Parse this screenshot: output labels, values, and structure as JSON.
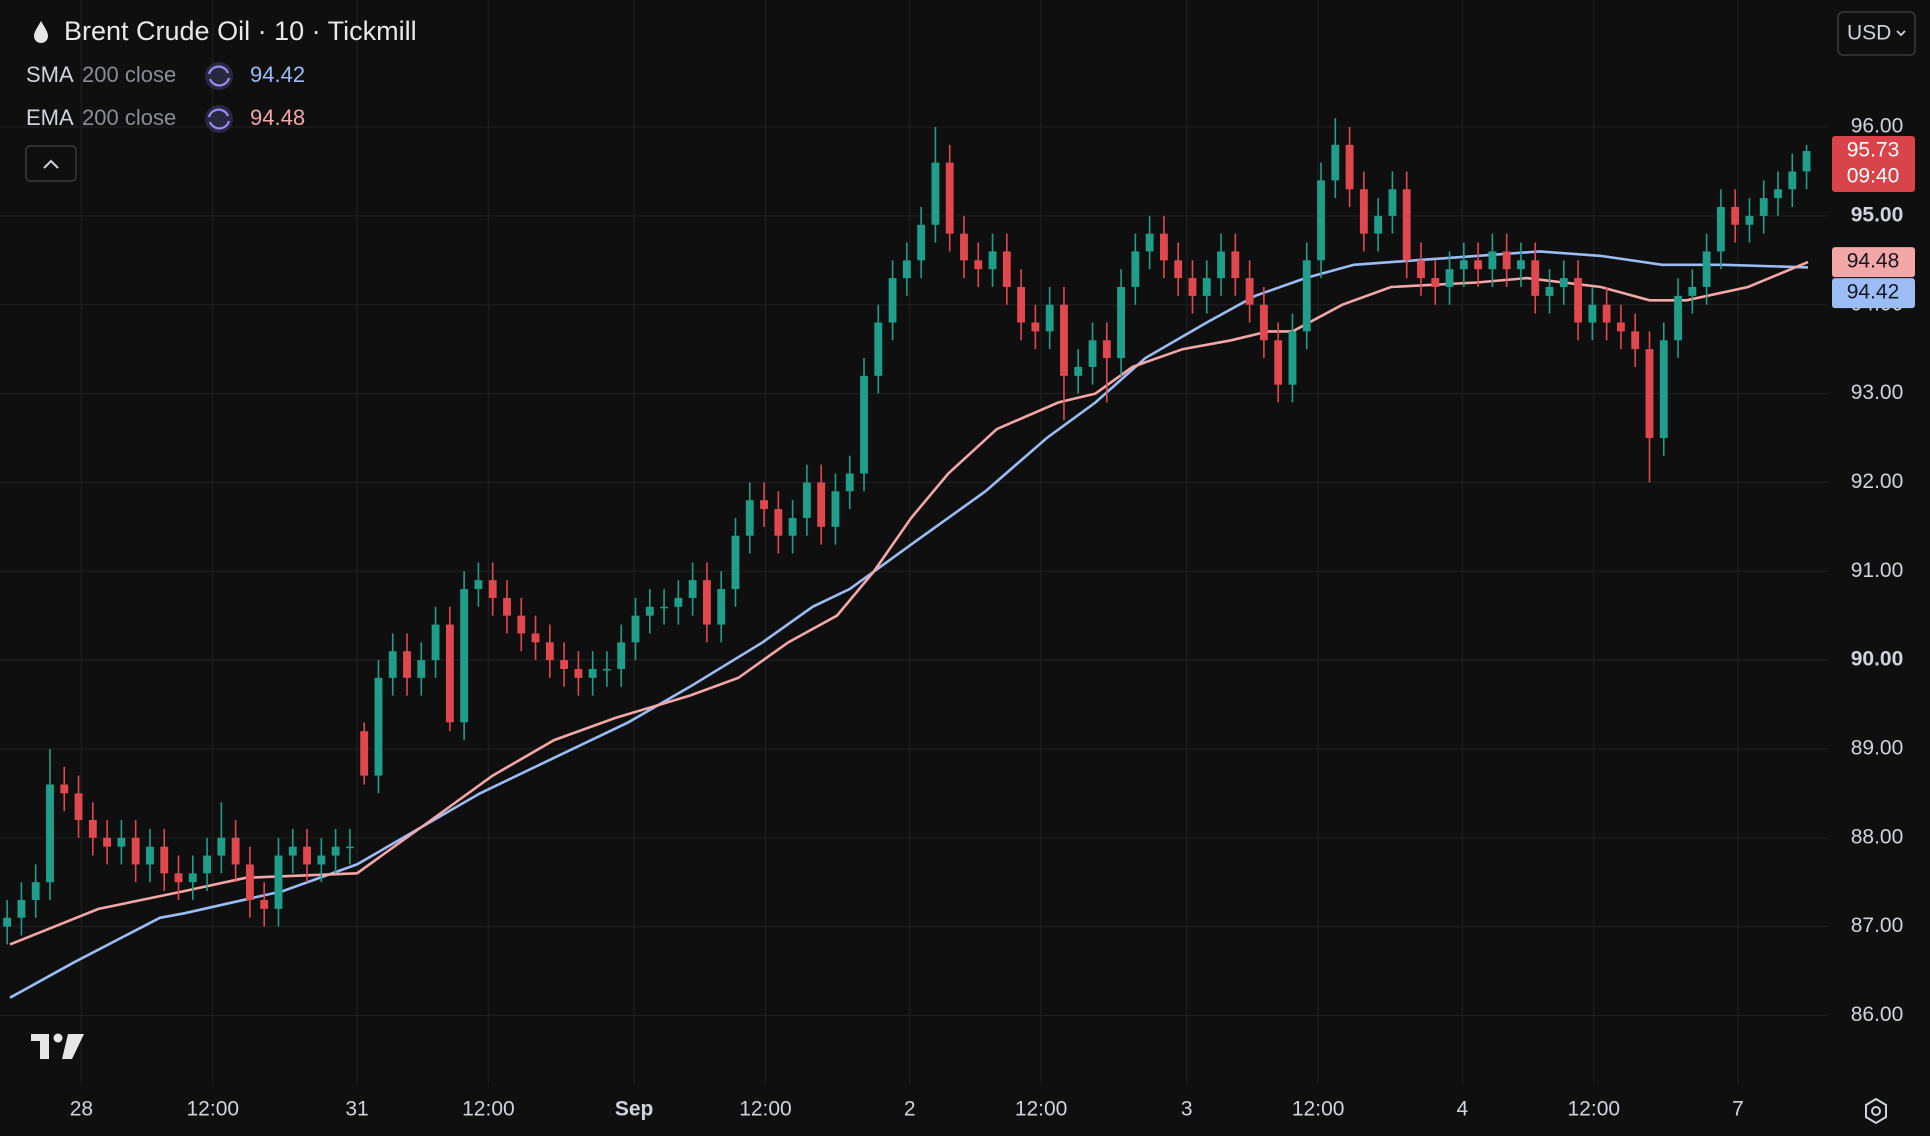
{
  "chart_data": {
    "type": "candlestick",
    "title": "Brent Crude Oil · 10 · Tickmill",
    "currency": "USD",
    "countdown": "09:40",
    "up_color": "#1f9e89",
    "down_color": "#e0484f",
    "grid": true,
    "xlim": [
      0,
      128
    ],
    "ylim": [
      85.24,
      97.43
    ],
    "xticks": [
      {
        "value": 5.7,
        "label": "28"
      },
      {
        "value": 14.9,
        "label": "12:00"
      },
      {
        "value": 25,
        "label": "31"
      },
      {
        "value": 34.2,
        "label": "12:00"
      },
      {
        "value": 44.4,
        "label": "Sep",
        "bold": true
      },
      {
        "value": 53.6,
        "label": "12:00"
      },
      {
        "value": 63.7,
        "label": "2"
      },
      {
        "value": 72.9,
        "label": "12:00"
      },
      {
        "value": 83.1,
        "label": "3"
      },
      {
        "value": 92.3,
        "label": "12:00"
      },
      {
        "value": 102.4,
        "label": "4"
      },
      {
        "value": 111.6,
        "label": "12:00"
      },
      {
        "value": 121.7,
        "label": "7"
      }
    ],
    "yticks": [
      {
        "value": 86,
        "label": "86.00"
      },
      {
        "value": 87,
        "label": "87.00"
      },
      {
        "value": 88,
        "label": "88.00"
      },
      {
        "value": 89,
        "label": "89.00"
      },
      {
        "value": 90,
        "label": "90.00",
        "bold": true
      },
      {
        "value": 91,
        "label": "91.00"
      },
      {
        "value": 92,
        "label": "92.00"
      },
      {
        "value": 93,
        "label": "93.00"
      },
      {
        "value": 94,
        "label": "94.00"
      },
      {
        "value": 95,
        "label": "95.00",
        "bold": true
      },
      {
        "value": 96,
        "label": "96.00"
      }
    ],
    "candles": [
      [
        87.0,
        87.3,
        86.8,
        87.1
      ],
      [
        87.1,
        87.5,
        86.9,
        87.3
      ],
      [
        87.3,
        87.7,
        87.1,
        87.5
      ],
      [
        87.5,
        89.0,
        87.3,
        88.6
      ],
      [
        88.6,
        88.8,
        88.3,
        88.5
      ],
      [
        88.5,
        88.7,
        88.0,
        88.2
      ],
      [
        88.2,
        88.4,
        87.8,
        88.0
      ],
      [
        88.0,
        88.2,
        87.7,
        87.9
      ],
      [
        87.9,
        88.2,
        87.7,
        88.0
      ],
      [
        88.0,
        88.2,
        87.5,
        87.7
      ],
      [
        87.7,
        88.1,
        87.5,
        87.9
      ],
      [
        87.9,
        88.1,
        87.4,
        87.6
      ],
      [
        87.6,
        87.8,
        87.3,
        87.5
      ],
      [
        87.5,
        87.8,
        87.3,
        87.6
      ],
      [
        87.6,
        88.0,
        87.4,
        87.8
      ],
      [
        87.8,
        88.4,
        87.6,
        88.0
      ],
      [
        88.0,
        88.2,
        87.5,
        87.7
      ],
      [
        87.7,
        87.9,
        87.1,
        87.3
      ],
      [
        87.3,
        87.5,
        87.0,
        87.2
      ],
      [
        87.2,
        88.0,
        87.0,
        87.8
      ],
      [
        87.8,
        88.1,
        87.6,
        87.9
      ],
      [
        87.9,
        88.1,
        87.5,
        87.7
      ],
      [
        87.7,
        88.0,
        87.5,
        87.8
      ],
      [
        87.8,
        88.1,
        87.6,
        87.9
      ],
      [
        87.9,
        88.1,
        87.7,
        87.9
      ],
      [
        89.2,
        89.3,
        88.6,
        88.7
      ],
      [
        88.7,
        90.0,
        88.5,
        89.8
      ],
      [
        89.8,
        90.3,
        89.6,
        90.1
      ],
      [
        90.1,
        90.3,
        89.6,
        89.8
      ],
      [
        89.8,
        90.2,
        89.6,
        90.0
      ],
      [
        90.0,
        90.6,
        89.8,
        90.4
      ],
      [
        90.4,
        90.6,
        89.2,
        89.3
      ],
      [
        89.3,
        91.0,
        89.1,
        90.8
      ],
      [
        90.8,
        91.1,
        90.6,
        90.9
      ],
      [
        90.9,
        91.1,
        90.5,
        90.7
      ],
      [
        90.7,
        90.9,
        90.3,
        90.5
      ],
      [
        90.5,
        90.7,
        90.1,
        90.3
      ],
      [
        90.3,
        90.5,
        90.0,
        90.2
      ],
      [
        90.2,
        90.4,
        89.8,
        90.0
      ],
      [
        90.0,
        90.2,
        89.7,
        89.9
      ],
      [
        89.9,
        90.1,
        89.6,
        89.8
      ],
      [
        89.8,
        90.1,
        89.6,
        89.9
      ],
      [
        89.9,
        90.1,
        89.7,
        89.9
      ],
      [
        89.9,
        90.4,
        89.7,
        90.2
      ],
      [
        90.2,
        90.7,
        90.0,
        90.5
      ],
      [
        90.5,
        90.8,
        90.3,
        90.6
      ],
      [
        90.6,
        90.8,
        90.4,
        90.6
      ],
      [
        90.6,
        90.9,
        90.4,
        90.7
      ],
      [
        90.7,
        91.1,
        90.5,
        90.9
      ],
      [
        90.9,
        91.1,
        90.2,
        90.4
      ],
      [
        90.4,
        91.0,
        90.2,
        90.8
      ],
      [
        90.8,
        91.6,
        90.6,
        91.4
      ],
      [
        91.4,
        92.0,
        91.2,
        91.8
      ],
      [
        91.8,
        92.0,
        91.5,
        91.7
      ],
      [
        91.7,
        91.9,
        91.2,
        91.4
      ],
      [
        91.4,
        91.8,
        91.2,
        91.6
      ],
      [
        91.6,
        92.2,
        91.4,
        92.0
      ],
      [
        92.0,
        92.2,
        91.3,
        91.5
      ],
      [
        91.5,
        92.1,
        91.3,
        91.9
      ],
      [
        91.9,
        92.3,
        91.7,
        92.1
      ],
      [
        92.1,
        93.4,
        91.9,
        93.2
      ],
      [
        93.2,
        94.0,
        93.0,
        93.8
      ],
      [
        93.8,
        94.5,
        93.6,
        94.3
      ],
      [
        94.3,
        94.7,
        94.1,
        94.5
      ],
      [
        94.5,
        95.1,
        94.3,
        94.9
      ],
      [
        94.9,
        96.0,
        94.7,
        95.6
      ],
      [
        95.6,
        95.8,
        94.6,
        94.8
      ],
      [
        94.8,
        95.0,
        94.3,
        94.5
      ],
      [
        94.5,
        94.7,
        94.2,
        94.4
      ],
      [
        94.4,
        94.8,
        94.2,
        94.6
      ],
      [
        94.6,
        94.8,
        94.0,
        94.2
      ],
      [
        94.2,
        94.4,
        93.6,
        93.8
      ],
      [
        93.8,
        94.0,
        93.5,
        93.7
      ],
      [
        93.7,
        94.2,
        93.5,
        94.0
      ],
      [
        94.0,
        94.2,
        92.7,
        93.2
      ],
      [
        93.2,
        93.5,
        93.0,
        93.3
      ],
      [
        93.3,
        93.8,
        93.1,
        93.6
      ],
      [
        93.6,
        93.8,
        92.9,
        93.4
      ],
      [
        93.4,
        94.4,
        93.2,
        94.2
      ],
      [
        94.2,
        94.8,
        94.0,
        94.6
      ],
      [
        94.6,
        95.0,
        94.4,
        94.8
      ],
      [
        94.8,
        95.0,
        94.3,
        94.5
      ],
      [
        94.5,
        94.7,
        94.1,
        94.3
      ],
      [
        94.3,
        94.5,
        93.9,
        94.1
      ],
      [
        94.1,
        94.5,
        93.9,
        94.3
      ],
      [
        94.3,
        94.8,
        94.1,
        94.6
      ],
      [
        94.6,
        94.8,
        94.1,
        94.3
      ],
      [
        94.3,
        94.5,
        93.8,
        94.0
      ],
      [
        94.0,
        94.2,
        93.4,
        93.6
      ],
      [
        93.6,
        93.8,
        92.9,
        93.1
      ],
      [
        93.1,
        93.9,
        92.9,
        93.7
      ],
      [
        93.7,
        94.7,
        93.5,
        94.5
      ],
      [
        94.5,
        95.6,
        94.3,
        95.4
      ],
      [
        95.4,
        96.1,
        95.2,
        95.8
      ],
      [
        95.8,
        96.0,
        95.1,
        95.3
      ],
      [
        95.3,
        95.5,
        94.6,
        94.8
      ],
      [
        94.8,
        95.2,
        94.6,
        95.0
      ],
      [
        95.0,
        95.5,
        94.8,
        95.3
      ],
      [
        95.3,
        95.5,
        94.3,
        94.5
      ],
      [
        94.5,
        94.7,
        94.1,
        94.3
      ],
      [
        94.3,
        94.5,
        94.0,
        94.2
      ],
      [
        94.2,
        94.6,
        94.0,
        94.4
      ],
      [
        94.4,
        94.7,
        94.2,
        94.5
      ],
      [
        94.5,
        94.7,
        94.2,
        94.4
      ],
      [
        94.4,
        94.8,
        94.2,
        94.6
      ],
      [
        94.6,
        94.8,
        94.2,
        94.4
      ],
      [
        94.4,
        94.7,
        94.2,
        94.5
      ],
      [
        94.5,
        94.7,
        93.9,
        94.1
      ],
      [
        94.1,
        94.4,
        93.9,
        94.2
      ],
      [
        94.2,
        94.5,
        94.0,
        94.3
      ],
      [
        94.3,
        94.5,
        93.6,
        93.8
      ],
      [
        93.8,
        94.2,
        93.6,
        94.0
      ],
      [
        94.0,
        94.2,
        93.6,
        93.8
      ],
      [
        93.8,
        94.0,
        93.5,
        93.7
      ],
      [
        93.7,
        93.9,
        93.3,
        93.5
      ],
      [
        93.5,
        93.7,
        92.0,
        92.5
      ],
      [
        92.5,
        93.8,
        92.3,
        93.6
      ],
      [
        93.6,
        94.3,
        93.4,
        94.1
      ],
      [
        94.1,
        94.4,
        93.9,
        94.2
      ],
      [
        94.2,
        94.8,
        94.0,
        94.6
      ],
      [
        94.6,
        95.3,
        94.4,
        95.1
      ],
      [
        95.1,
        95.3,
        94.7,
        94.9
      ],
      [
        94.9,
        95.2,
        94.7,
        95.0
      ],
      [
        95.0,
        95.4,
        94.8,
        95.2
      ],
      [
        95.2,
        95.5,
        95.0,
        95.3
      ],
      [
        95.3,
        95.7,
        95.1,
        95.5
      ],
      [
        95.5,
        95.8,
        95.3,
        95.73
      ]
    ],
    "series": [
      {
        "name": "SMA",
        "params": "200 close",
        "color": "#9bbcf5",
        "x": [
          0.7,
          5.2,
          11.2,
          12.9,
          19.8,
          25,
          29.3,
          33.6,
          38.8,
          44,
          48.3,
          53.4,
          56.9,
          59.5,
          63.8,
          69,
          73.3,
          76.7,
          80.2,
          84.5,
          87.9,
          91.4,
          94.8,
          99.1,
          103.4,
          107.8,
          112.1,
          116.4,
          120.7,
          126.6
        ],
        "values": [
          86.2,
          86.6,
          87.1,
          87.15,
          87.4,
          87.7,
          88.1,
          88.5,
          88.9,
          89.3,
          89.7,
          90.2,
          90.6,
          90.8,
          91.3,
          91.9,
          92.5,
          92.9,
          93.4,
          93.8,
          94.1,
          94.3,
          94.45,
          94.5,
          94.55,
          94.6,
          94.55,
          94.45,
          94.45,
          94.42
        ]
      },
      {
        "name": "EMA",
        "params": "200 close",
        "color": "#f4a7a7",
        "x": [
          0.7,
          6.9,
          12.9,
          17.2,
          25,
          30.2,
          34.5,
          38.8,
          43.1,
          48.3,
          51.7,
          55.2,
          58.6,
          61.2,
          63.8,
          66.4,
          69.8,
          74.1,
          76.7,
          79.3,
          82.8,
          86.2,
          88.8,
          90.5,
          94,
          97.4,
          103.4,
          106.9,
          112.1,
          115.5,
          118.1,
          122.4,
          126.6
        ],
        "values": [
          86.8,
          87.2,
          87.4,
          87.55,
          87.6,
          88.2,
          88.7,
          89.1,
          89.35,
          89.6,
          89.8,
          90.2,
          90.5,
          91.0,
          91.6,
          92.1,
          92.6,
          92.9,
          93.0,
          93.3,
          93.5,
          93.6,
          93.7,
          93.7,
          94.0,
          94.2,
          94.25,
          94.3,
          94.2,
          94.05,
          94.05,
          94.2,
          94.48
        ]
      }
    ]
  }
}
